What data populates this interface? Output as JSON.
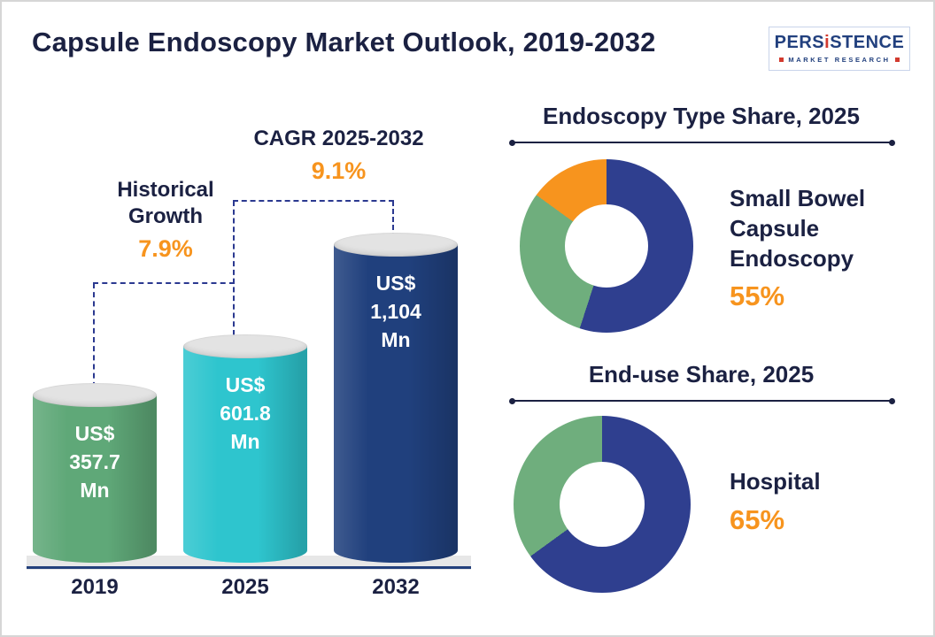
{
  "page": {
    "title": "Capsule Endoscopy Market Outlook, 2019-2032"
  },
  "logo": {
    "part1": "PERS",
    "part2": "i",
    "part3": "STENCE",
    "subtitle": "MARKET RESEARCH"
  },
  "colors": {
    "accent_orange": "#f7941e",
    "heading_navy": "#1b2142",
    "annotation_line": "#2b3990",
    "floor_gray": "#e7e7e7",
    "baseline_navy": "#23407c"
  },
  "chart_data": [
    {
      "type": "bar",
      "categories": [
        "2019",
        "2025",
        "2032"
      ],
      "values": [
        357.7,
        601.8,
        1104
      ],
      "unit": "US$ Mn",
      "bar_labels": [
        "US$ 357.7 Mn",
        "US$ 601.8 Mn",
        "US$ 1,104 Mn"
      ],
      "colors": [
        "#5fa878",
        "#2ec5ce",
        "#20407d"
      ],
      "ylim": [
        0,
        1200
      ],
      "annotations": [
        {
          "label": "Historical Growth",
          "value": "7.9%"
        },
        {
          "label": "CAGR 2025-2032",
          "value": "9.1%"
        }
      ]
    },
    {
      "type": "pie",
      "title": "Endoscopy Type Share, 2025",
      "donut": true,
      "slices": [
        {
          "label": "Small Bowel Capsule Endoscopy",
          "value": 55,
          "color": "#2f3f8f"
        },
        {
          "label": "",
          "value": 30,
          "color": "#6fae7d"
        },
        {
          "label": "",
          "value": 15,
          "color": "#f7941e"
        }
      ],
      "highlight": {
        "label": "Small Bowel Capsule Endoscopy",
        "value": "55%"
      }
    },
    {
      "type": "pie",
      "title": "End-use Share, 2025",
      "donut": true,
      "slices": [
        {
          "label": "Hospital",
          "value": 65,
          "color": "#2f3f8f"
        },
        {
          "label": "",
          "value": 35,
          "color": "#6fae7d"
        }
      ],
      "highlight": {
        "label": "Hospital",
        "value": "65%"
      }
    }
  ]
}
